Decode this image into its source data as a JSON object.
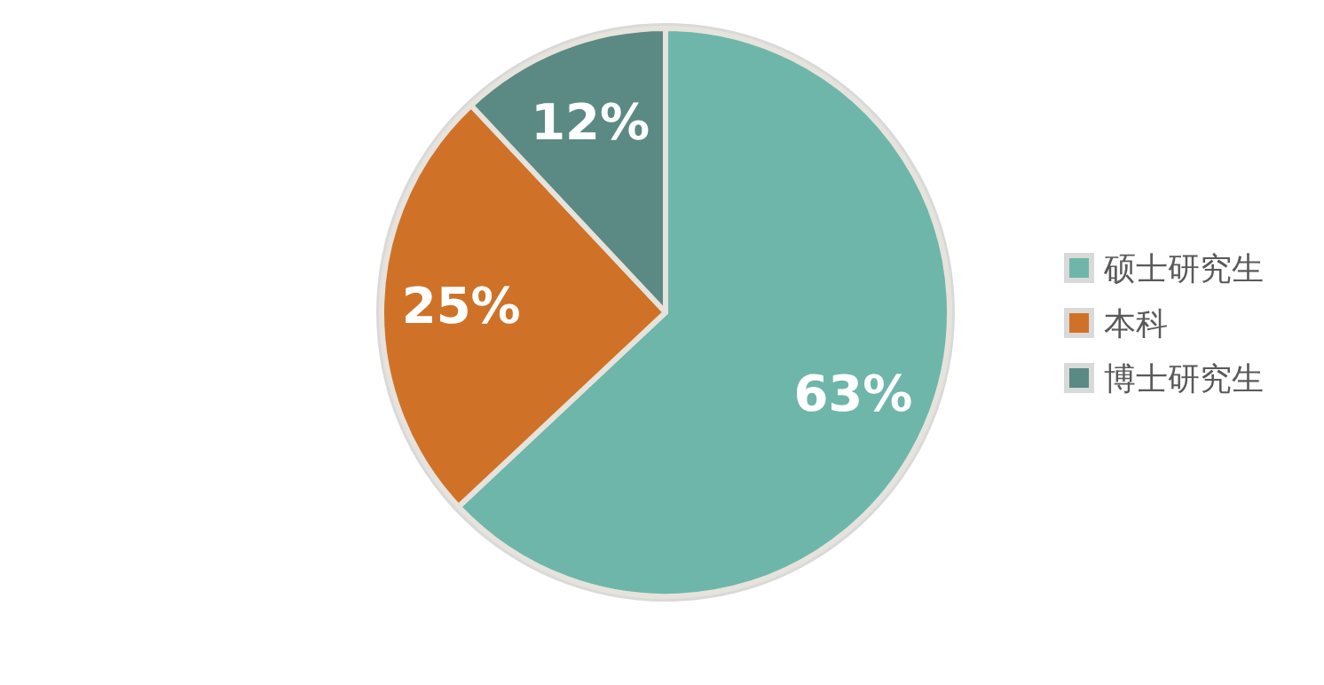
{
  "chart_data": {
    "type": "pie",
    "categories": [
      "硕士研究生",
      "本科",
      "博士研究生"
    ],
    "values": [
      63,
      25,
      12
    ],
    "colors": [
      "#6eb6aa",
      "#cf7228",
      "#5a8a83"
    ],
    "value_labels": [
      "63%",
      "25%",
      "12%"
    ],
    "legend": "right"
  }
}
